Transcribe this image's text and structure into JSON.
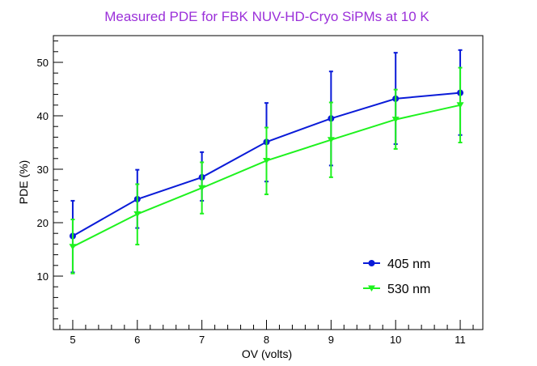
{
  "chart_data": {
    "type": "line",
    "title": "Measured PDE for FBK NUV-HD-Cryo SiPMs at 10 K",
    "xlabel": "OV (volts)",
    "ylabel": "PDE (%)",
    "xlim": [
      4.7,
      11.35
    ],
    "ylim": [
      0,
      55
    ],
    "x_ticks": [
      5,
      6,
      7,
      8,
      9,
      10,
      11
    ],
    "y_ticks": [
      10,
      20,
      30,
      40,
      50
    ],
    "x": [
      5,
      6,
      7,
      8,
      9,
      10,
      11
    ],
    "grid": false,
    "legend_position": "bottom-right",
    "colors": {
      "title": "#9b30d9",
      "axis": "#000000"
    },
    "series": [
      {
        "name": "405 nm",
        "color": "#0a1bd8",
        "marker": "circle",
        "values": [
          17.5,
          24.4,
          28.5,
          35.1,
          39.5,
          43.2,
          44.3
        ],
        "err_low": [
          6.8,
          5.4,
          4.4,
          7.4,
          8.8,
          8.5,
          7.9
        ],
        "err_high": [
          6.6,
          5.5,
          4.7,
          7.3,
          8.8,
          8.6,
          8.0
        ]
      },
      {
        "name": "530 nm",
        "color": "#1ef21e",
        "marker": "triangle-down",
        "values": [
          15.5,
          21.6,
          26.5,
          31.6,
          35.5,
          39.3,
          42.0
        ],
        "err_low": [
          5.0,
          5.7,
          4.8,
          6.3,
          7.0,
          5.5,
          7.0
        ],
        "err_high": [
          5.1,
          5.6,
          4.8,
          6.2,
          7.0,
          5.6,
          7.0
        ]
      }
    ]
  }
}
